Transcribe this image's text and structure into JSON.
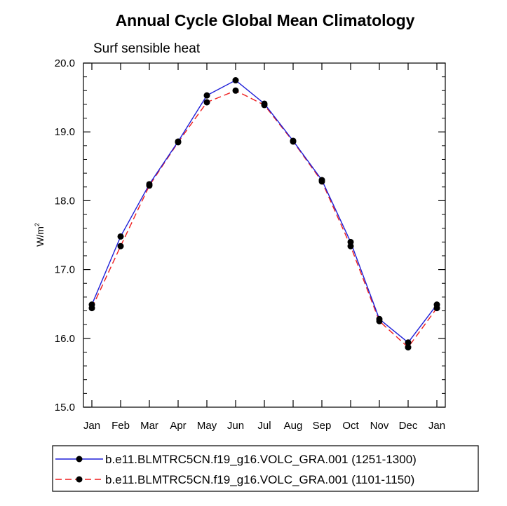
{
  "chart_data": {
    "type": "line",
    "title": "Annual Cycle Global Mean Climatology",
    "subtitle": "Surf sensible heat",
    "xlabel": "",
    "ylabel": "W/m",
    "ylabel_superscript": "2",
    "categories": [
      "Jan",
      "Feb",
      "Mar",
      "Apr",
      "May",
      "Jun",
      "Jul",
      "Aug",
      "Sep",
      "Oct",
      "Nov",
      "Dec",
      "Jan"
    ],
    "ylim": [
      15.0,
      20.0
    ],
    "yticks": [
      "15.0",
      "16.0",
      "17.0",
      "18.0",
      "19.0",
      "20.0"
    ],
    "ytick_values": [
      15.0,
      16.0,
      17.0,
      18.0,
      19.0,
      20.0
    ],
    "grid": false,
    "legend_position": "bottom",
    "series": [
      {
        "name": "b.e11.BLMTRC5CN.f19_g16.VOLC_GRA.001 (1251-1300)",
        "color": "#1f1fd8",
        "dash": "solid",
        "marker": "filled-circle",
        "values": [
          16.49,
          17.48,
          18.24,
          18.86,
          19.53,
          19.75,
          19.41,
          18.87,
          18.3,
          17.4,
          16.28,
          15.94,
          16.49
        ]
      },
      {
        "name": "b.e11.BLMTRC5CN.f19_g16.VOLC_GRA.001 (1101-1150)",
        "color": "#ee1c1c",
        "dash": "dashed",
        "marker": "filled-circle",
        "values": [
          16.44,
          17.34,
          18.22,
          18.85,
          19.43,
          19.6,
          19.39,
          18.86,
          18.28,
          17.34,
          16.25,
          15.87,
          16.44
        ]
      }
    ]
  }
}
